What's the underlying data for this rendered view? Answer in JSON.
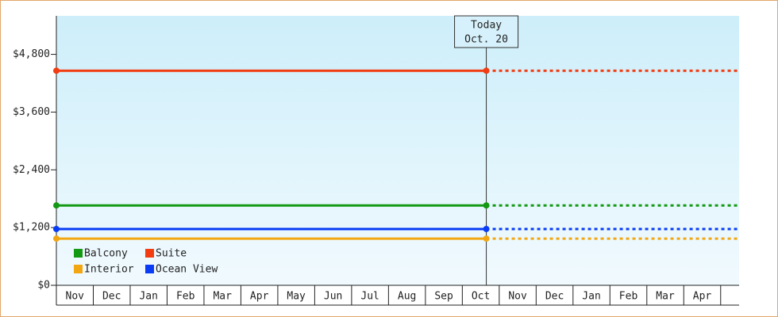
{
  "chart_data": {
    "type": "line",
    "categories": [
      "Nov",
      "Dec",
      "Jan",
      "Feb",
      "Mar",
      "Apr",
      "May",
      "Jun",
      "Jul",
      "Aug",
      "Sep",
      "Oct",
      "Nov",
      "Dec",
      "Jan",
      "Feb",
      "Mar",
      "Apr"
    ],
    "x": [
      0,
      11.65
    ],
    "xlim": [
      0,
      18.5
    ],
    "ylim": [
      0,
      5600
    ],
    "yticks": [
      {
        "value": 0,
        "label": "$0"
      },
      {
        "value": 1200,
        "label": "$1,200"
      },
      {
        "value": 2400,
        "label": "$2,400"
      },
      {
        "value": 3600,
        "label": "$3,600"
      },
      {
        "value": 4800,
        "label": "$4,800"
      }
    ],
    "annotations": [
      "Today",
      "Oct. 20"
    ],
    "series": [
      {
        "name": "Balcony",
        "color": "#139913",
        "values": [
          1660,
          1660
        ]
      },
      {
        "name": "Suite",
        "color": "#f23c12",
        "values": [
          4460,
          4460
        ]
      },
      {
        "name": "Interior",
        "color": "#f2a712",
        "values": [
          970,
          970
        ]
      },
      {
        "name": "Ocean View",
        "color": "#0a3cf5",
        "values": [
          1170,
          1170
        ]
      }
    ]
  }
}
